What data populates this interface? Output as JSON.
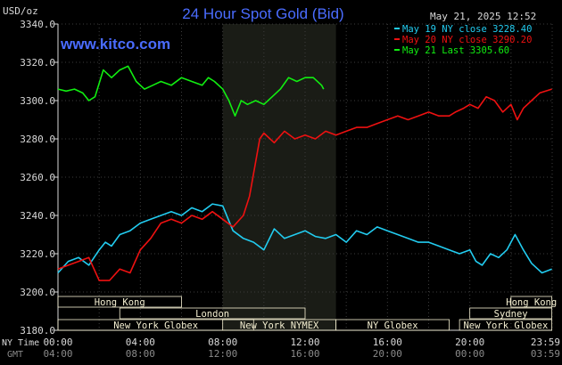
{
  "header": {
    "units": "USD/oz",
    "title": "24 Hour Spot Gold (Bid)",
    "datetime": "May 21, 2025 12:52",
    "site": "www.kitco.com"
  },
  "colors": {
    "background": "#000000",
    "shaded_hours": "#1a1c16",
    "grid": "#3c3c3c",
    "axis": "#d8d8d8",
    "title": "#4a6cff",
    "site": "#4a6cff",
    "series_may19": "#22ccf0",
    "series_may20": "#ee1111",
    "series_may21": "#11ee11",
    "session_box": "#f5f0d2"
  },
  "legend": {
    "position": "top-right",
    "items": [
      {
        "label": "May 19 NY close 3228.40",
        "color": "#22ccf0"
      },
      {
        "label": "May 20 NY close 3290.20",
        "color": "#ee1111"
      },
      {
        "label": "May 21 Last 3305.60",
        "color": "#11ee11"
      }
    ]
  },
  "sessions": [
    {
      "label": "Hong Kong",
      "start_hour": 0,
      "end_hour": 6
    },
    {
      "label": "London",
      "start_hour": 3,
      "end_hour": 12
    },
    {
      "label": "New York Globex",
      "start_hour": 0,
      "end_hour": 9.5
    },
    {
      "label": "New York NYMEX",
      "start_hour": 8,
      "end_hour": 13.5
    },
    {
      "label": "NY Globex",
      "start_hour": 13.5,
      "end_hour": 19
    },
    {
      "label": "Hong Kong",
      "start_hour": 22,
      "end_hour": 23.983
    },
    {
      "label": "Sydney",
      "start_hour": 20,
      "end_hour": 23.983
    },
    {
      "label": "New York Globex",
      "start_hour": 19.5,
      "end_hour": 23.983
    }
  ],
  "axis_labels": {
    "ny_time": "NY Time",
    "gmt": "GMT"
  },
  "chart_data": {
    "type": "line",
    "title": "24 Hour Spot Gold (Bid)",
    "ylabel": "USD/oz",
    "ylim": [
      3180,
      3340
    ],
    "xlim": [
      0,
      24
    ],
    "grid": true,
    "shaded_hours": [
      8.0,
      13.5
    ],
    "y_ticks": [
      "3180.0",
      "3200.0",
      "3220.0",
      "3240.0",
      "3260.0",
      "3280.0",
      "3300.0",
      "3320.0",
      "3340.0"
    ],
    "x_ticks_ny": [
      "00:00",
      "04:00",
      "08:00",
      "12:00",
      "16:00",
      "20:00",
      "23:59"
    ],
    "x_ticks_gmt": [
      "04:00",
      "08:00",
      "12:00",
      "16:00",
      "20:00",
      "00:00",
      "03:59"
    ],
    "series": [
      {
        "name": "May 19 NY close 3228.40",
        "x": [
          0,
          0.5,
          1,
          1.5,
          2,
          2.3,
          2.6,
          3,
          3.5,
          4,
          4.5,
          5,
          5.5,
          6,
          6.5,
          7,
          7.5,
          8,
          8.5,
          9,
          9.5,
          10,
          10.5,
          11,
          11.5,
          12,
          12.5,
          13,
          13.5,
          14,
          14.5,
          15,
          15.5,
          16,
          16.5,
          17,
          17.5,
          18,
          18.5,
          19,
          19.5,
          20,
          20.3,
          20.6,
          21,
          21.4,
          21.8,
          22.2,
          22.6,
          23,
          23.5,
          23.983
        ],
        "values": [
          3210,
          3216,
          3218,
          3214,
          3222,
          3226,
          3224,
          3230,
          3232,
          3236,
          3238,
          3240,
          3242,
          3240,
          3244,
          3242,
          3246,
          3245,
          3232,
          3228,
          3226,
          3222,
          3233,
          3228,
          3230,
          3232,
          3229,
          3228,
          3230,
          3226,
          3232,
          3230,
          3234,
          3232,
          3230,
          3228,
          3226,
          3226,
          3224,
          3222,
          3220,
          3222,
          3216,
          3214,
          3220,
          3218,
          3222,
          3230,
          3222,
          3215,
          3210,
          3212
        ],
        "color": "#22ccf0"
      },
      {
        "name": "May 20 NY close 3290.20",
        "x": [
          0,
          0.5,
          1,
          1.5,
          2,
          2.5,
          3,
          3.5,
          4,
          4.5,
          5,
          5.5,
          6,
          6.5,
          7,
          7.5,
          8,
          8.5,
          9,
          9.3,
          9.6,
          9.8,
          10,
          10.5,
          11,
          11.5,
          12,
          12.5,
          13,
          13.5,
          14,
          14.5,
          15,
          15.5,
          16,
          16.5,
          17,
          17.5,
          18,
          18.5,
          19,
          19.3,
          19.7,
          20,
          20.4,
          20.8,
          21.2,
          21.6,
          22,
          22.3,
          22.6,
          23,
          23.4,
          23.983
        ],
        "values": [
          3212,
          3214,
          3216,
          3218,
          3206,
          3206,
          3212,
          3210,
          3222,
          3228,
          3236,
          3238,
          3236,
          3240,
          3238,
          3242,
          3238,
          3234,
          3240,
          3250,
          3268,
          3280,
          3283,
          3278,
          3284,
          3280,
          3282,
          3280,
          3284,
          3282,
          3284,
          3286,
          3286,
          3288,
          3290,
          3292,
          3290,
          3292,
          3294,
          3292,
          3292,
          3294,
          3296,
          3298,
          3296,
          3302,
          3300,
          3294,
          3298,
          3290,
          3296,
          3300,
          3304,
          3306
        ],
        "color": "#ee1111"
      },
      {
        "name": "May 21 Last 3305.60",
        "x": [
          0,
          0.4,
          0.8,
          1.2,
          1.5,
          1.8,
          2.2,
          2.6,
          3,
          3.4,
          3.8,
          4.2,
          4.6,
          5,
          5.5,
          6,
          6.5,
          7,
          7.3,
          7.6,
          8,
          8.3,
          8.6,
          8.9,
          9.2,
          9.6,
          10,
          10.4,
          10.8,
          11.2,
          11.6,
          12,
          12.4,
          12.8,
          12.9
        ],
        "values": [
          3306,
          3305,
          3306,
          3304,
          3300,
          3302,
          3316,
          3312,
          3316,
          3318,
          3310,
          3306,
          3308,
          3310,
          3308,
          3312,
          3310,
          3308,
          3312,
          3310,
          3306,
          3300,
          3292,
          3300,
          3298,
          3300,
          3298,
          3302,
          3306,
          3312,
          3310,
          3312,
          3312,
          3308,
          3306
        ],
        "color": "#11ee11"
      }
    ]
  }
}
